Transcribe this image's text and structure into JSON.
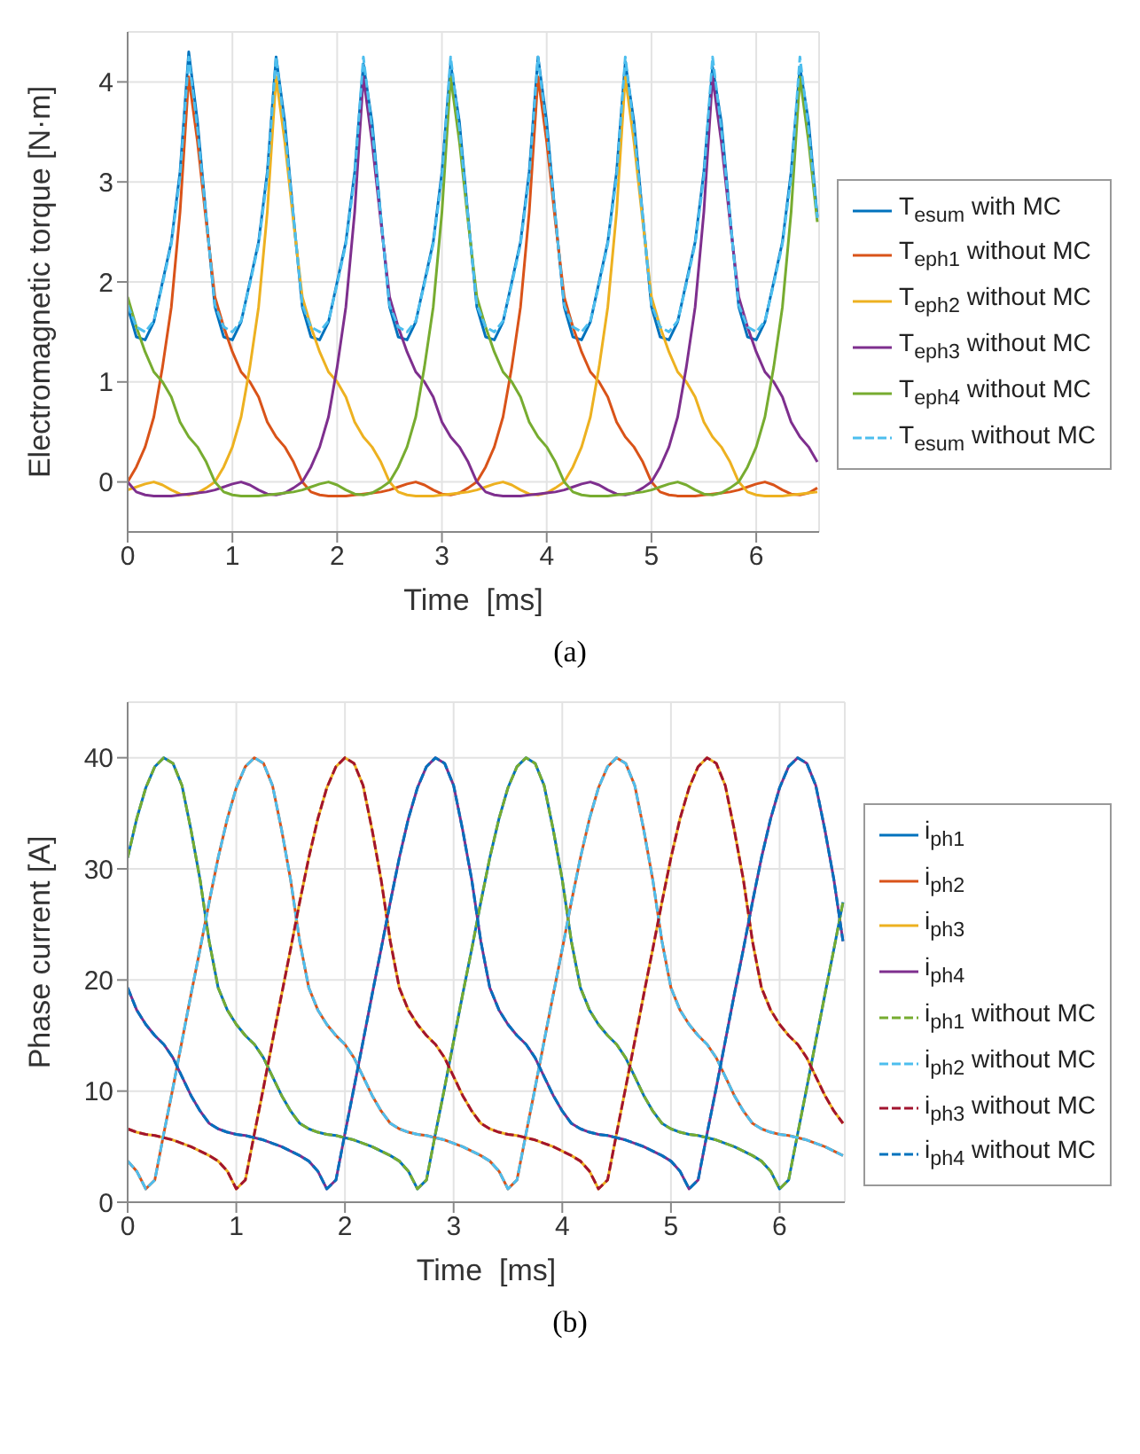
{
  "chart_data": [
    {
      "type": "line",
      "xlabel": "Time  [ms]",
      "ylabel": "Electromagnetic torque [N·m]",
      "annotations": [
        "(a)"
      ],
      "xlim": [
        0,
        6.6
      ],
      "xticks": [
        0,
        1,
        2,
        3,
        4,
        5,
        6
      ],
      "ylim": [
        -0.5,
        4.5
      ],
      "yticks": [
        0,
        1,
        2,
        3,
        4
      ],
      "grid": true,
      "legend": "right",
      "x": [
        0,
        0.083,
        0.167,
        0.25,
        0.333,
        0.417,
        0.5,
        0.583,
        0.667,
        0.75,
        0.833,
        0.917,
        1,
        1.083,
        1.167,
        1.25,
        1.333,
        1.417,
        1.5,
        1.583,
        1.667,
        1.75,
        1.833,
        1.917,
        2,
        2.083,
        2.167,
        2.25,
        2.333,
        2.417,
        2.5,
        2.583,
        2.667,
        2.75,
        2.833,
        2.917,
        3,
        3.083,
        3.167,
        3.25,
        3.333,
        3.417,
        3.5,
        3.583,
        3.667,
        3.75,
        3.833,
        3.917,
        4,
        4.083,
        4.167,
        4.25,
        4.333,
        4.417,
        4.5,
        4.583,
        4.667,
        4.75,
        4.833,
        4.917,
        5,
        5.083,
        5.167,
        5.25,
        5.333,
        5.417,
        5.5,
        5.583,
        5.667,
        5.75,
        5.833,
        5.917,
        6,
        6.083,
        6.167,
        6.25,
        6.333,
        6.417,
        6.5,
        6.583
      ],
      "series": [
        {
          "name": "T$_{esum}$ with MC",
          "color": "#0072bd",
          "line_style": "solid",
          "values": [
            1.75,
            1.45,
            1.42,
            1.6,
            2,
            2.4,
            3.1,
            4.3,
            3.6,
            2.65,
            1.75,
            1.45,
            1.42,
            1.6,
            2,
            2.4,
            3.1,
            4.25,
            3.6,
            2.65,
            1.75,
            1.45,
            1.42,
            1.6,
            2,
            2.4,
            3.1,
            4.18,
            3.6,
            2.65,
            1.75,
            1.45,
            1.42,
            1.6,
            2,
            2.4,
            3.1,
            4.18,
            3.6,
            2.65,
            1.75,
            1.45,
            1.42,
            1.6,
            2,
            2.4,
            3.1,
            4.25,
            3.6,
            2.65,
            1.75,
            1.45,
            1.42,
            1.6,
            2,
            2.4,
            3.1,
            4.2,
            3.6,
            2.65,
            1.75,
            1.45,
            1.42,
            1.6,
            2,
            2.4,
            3.1,
            4.15,
            3.6,
            2.65,
            1.75,
            1.45,
            1.42,
            1.6,
            2,
            2.4,
            3.1,
            4.15,
            3.6,
            2.65
          ]
        },
        {
          "name": "T$_{eph1}$ without MC",
          "color": "#d95319",
          "line_style": "solid",
          "values": [
            0,
            0.15,
            0.35,
            0.65,
            1.15,
            1.75,
            2.7,
            4.05,
            3.4,
            2.6,
            1.85,
            1.55,
            1.3,
            1.1,
            1,
            0.85,
            0.6,
            0.45,
            0.35,
            0.2,
            0,
            -0.1,
            -0.13,
            -0.14,
            -0.14,
            -0.14,
            -0.13,
            -0.12,
            -0.11,
            -0.1,
            -0.08,
            -0.05,
            -0.02,
            0,
            -0.03,
            -0.08,
            -0.12,
            -0.13,
            -0.11,
            -0.06,
            0,
            0.15,
            0.35,
            0.65,
            1.15,
            1.75,
            2.7,
            4.05,
            3.4,
            2.6,
            1.85,
            1.55,
            1.3,
            1.1,
            1,
            0.85,
            0.6,
            0.45,
            0.35,
            0.2,
            0,
            -0.1,
            -0.13,
            -0.14,
            -0.14,
            -0.14,
            -0.13,
            -0.12,
            -0.11,
            -0.1,
            -0.08,
            -0.05,
            -0.02,
            0,
            -0.03,
            -0.08,
            -0.12,
            -0.13,
            -0.11,
            -0.06
          ]
        },
        {
          "name": "T$_{eph2}$ without MC",
          "color": "#edb120",
          "line_style": "solid",
          "values": [
            -0.08,
            -0.05,
            -0.02,
            0,
            -0.03,
            -0.08,
            -0.12,
            -0.13,
            -0.11,
            -0.06,
            0,
            0.15,
            0.35,
            0.65,
            1.15,
            1.75,
            2.7,
            4.05,
            3.4,
            2.6,
            1.85,
            1.55,
            1.3,
            1.1,
            1,
            0.85,
            0.6,
            0.45,
            0.35,
            0.2,
            0,
            -0.1,
            -0.13,
            -0.14,
            -0.14,
            -0.14,
            -0.13,
            -0.12,
            -0.11,
            -0.1,
            -0.08,
            -0.05,
            -0.02,
            0,
            -0.03,
            -0.08,
            -0.12,
            -0.13,
            -0.11,
            -0.06,
            0,
            0.15,
            0.35,
            0.65,
            1.15,
            1.75,
            2.7,
            4.05,
            3.4,
            2.6,
            1.85,
            1.55,
            1.3,
            1.1,
            1,
            0.85,
            0.6,
            0.45,
            0.35,
            0.2,
            0,
            -0.1,
            -0.13,
            -0.14,
            -0.14,
            -0.14,
            -0.13,
            -0.12,
            -0.11,
            -0.1
          ]
        },
        {
          "name": "T$_{eph3}$ without MC",
          "color": "#7e2f8e",
          "line_style": "solid",
          "values": [
            0,
            -0.1,
            -0.13,
            -0.14,
            -0.14,
            -0.14,
            -0.13,
            -0.12,
            -0.11,
            -0.1,
            -0.08,
            -0.05,
            -0.02,
            0,
            -0.03,
            -0.08,
            -0.12,
            -0.13,
            -0.11,
            -0.06,
            0,
            0.15,
            0.35,
            0.65,
            1.15,
            1.75,
            2.7,
            4.05,
            3.4,
            2.6,
            1.85,
            1.55,
            1.3,
            1.1,
            1,
            0.85,
            0.6,
            0.45,
            0.35,
            0.2,
            0,
            -0.1,
            -0.13,
            -0.14,
            -0.14,
            -0.14,
            -0.13,
            -0.12,
            -0.11,
            -0.1,
            -0.08,
            -0.05,
            -0.02,
            0,
            -0.03,
            -0.08,
            -0.12,
            -0.13,
            -0.11,
            -0.06,
            0,
            0.15,
            0.35,
            0.65,
            1.15,
            1.75,
            2.7,
            4.05,
            3.4,
            2.6,
            1.85,
            1.55,
            1.3,
            1.1,
            1,
            0.85,
            0.6,
            0.45,
            0.35,
            0.2
          ]
        },
        {
          "name": "T$_{eph4}$ without MC",
          "color": "#77ac30",
          "line_style": "solid",
          "values": [
            1.85,
            1.55,
            1.3,
            1.1,
            1,
            0.85,
            0.6,
            0.45,
            0.35,
            0.2,
            0,
            -0.1,
            -0.13,
            -0.14,
            -0.14,
            -0.14,
            -0.13,
            -0.12,
            -0.11,
            -0.1,
            -0.08,
            -0.05,
            -0.02,
            0,
            -0.03,
            -0.08,
            -0.12,
            -0.13,
            -0.11,
            -0.06,
            0,
            0.15,
            0.35,
            0.65,
            1.15,
            1.75,
            2.7,
            4.05,
            3.4,
            2.6,
            1.85,
            1.55,
            1.3,
            1.1,
            1,
            0.85,
            0.6,
            0.45,
            0.35,
            0.2,
            0,
            -0.1,
            -0.13,
            -0.14,
            -0.14,
            -0.14,
            -0.13,
            -0.12,
            -0.11,
            -0.1,
            -0.08,
            -0.05,
            -0.02,
            0,
            -0.03,
            -0.08,
            -0.12,
            -0.13,
            -0.11,
            -0.06,
            0,
            0.15,
            0.35,
            0.65,
            1.15,
            1.75,
            2.7,
            4.05,
            3.4,
            2.6
          ]
        },
        {
          "name": "T$_{esum}$ without MC",
          "color": "#4dbeee",
          "line_style": "dashed",
          "values": [
            1.77,
            1.55,
            1.5,
            1.61,
            1.98,
            2.38,
            3.05,
            4.25,
            3.53,
            2.64,
            1.77,
            1.55,
            1.5,
            1.61,
            1.98,
            2.38,
            3.05,
            4.25,
            3.53,
            2.64,
            1.77,
            1.55,
            1.5,
            1.61,
            1.98,
            2.38,
            3.05,
            4.25,
            3.53,
            2.64,
            1.77,
            1.55,
            1.5,
            1.61,
            1.98,
            2.38,
            3.05,
            4.25,
            3.53,
            2.64,
            1.77,
            1.55,
            1.5,
            1.61,
            1.98,
            2.38,
            3.05,
            4.25,
            3.53,
            2.64,
            1.77,
            1.55,
            1.5,
            1.61,
            1.98,
            2.38,
            3.05,
            4.25,
            3.53,
            2.64,
            1.77,
            1.55,
            1.5,
            1.61,
            1.98,
            2.38,
            3.05,
            4.25,
            3.53,
            2.64,
            1.77,
            1.55,
            1.5,
            1.61,
            1.98,
            2.38,
            3.05,
            4.25,
            3.53,
            2.64
          ]
        }
      ]
    },
    {
      "type": "line",
      "xlabel": "Time  [ms]",
      "ylabel": "Phase current [A]",
      "annotations": [
        "(b)"
      ],
      "xlim": [
        0,
        6.6
      ],
      "xticks": [
        0,
        1,
        2,
        3,
        4,
        5,
        6
      ],
      "ylim": [
        0,
        45
      ],
      "yticks": [
        0,
        10,
        20,
        30,
        40
      ],
      "grid": true,
      "legend": "right",
      "x": [
        0,
        0.083,
        0.167,
        0.25,
        0.333,
        0.417,
        0.5,
        0.583,
        0.667,
        0.75,
        0.833,
        0.917,
        1,
        1.083,
        1.167,
        1.25,
        1.333,
        1.417,
        1.5,
        1.583,
        1.667,
        1.75,
        1.833,
        1.917,
        2,
        2.083,
        2.167,
        2.25,
        2.333,
        2.417,
        2.5,
        2.583,
        2.667,
        2.75,
        2.833,
        2.917,
        3,
        3.083,
        3.167,
        3.25,
        3.333,
        3.417,
        3.5,
        3.583,
        3.667,
        3.75,
        3.833,
        3.917,
        4,
        4.083,
        4.167,
        4.25,
        4.333,
        4.417,
        4.5,
        4.583,
        4.667,
        4.75,
        4.833,
        4.917,
        5,
        5.083,
        5.167,
        5.25,
        5.333,
        5.417,
        5.5,
        5.583,
        5.667,
        5.75,
        5.833,
        5.917,
        6,
        6.083,
        6.167,
        6.25,
        6.333,
        6.417,
        6.5,
        6.583
      ],
      "series": [
        {
          "name": "i$_{ph1}$",
          "color": "#0072bd",
          "line_style": "solid",
          "values": [
            31,
            34.5,
            37.3,
            39.2,
            40,
            39.5,
            37.5,
            33.5,
            29,
            23.5,
            19.3,
            17.3,
            16,
            15,
            14.2,
            13,
            11.3,
            9.6,
            8.2,
            7.1,
            6.6,
            6.3,
            6.1,
            6,
            5.8,
            5.6,
            5.3,
            5,
            4.6,
            4.2,
            3.7,
            2.8,
            1.2,
            2,
            6.2,
            10.3,
            14.5,
            18.7,
            22.8,
            27,
            31,
            34.5,
            37.3,
            39.2,
            40,
            39.5,
            37.5,
            33.5,
            29,
            23.5,
            19.3,
            17.3,
            16,
            15,
            14.2,
            13,
            11.3,
            9.6,
            8.2,
            7.1,
            6.6,
            6.3,
            6.1,
            6,
            5.8,
            5.6,
            5.3,
            5,
            4.6,
            4.2,
            3.7,
            2.8,
            1.2,
            2,
            6.2,
            10.3,
            14.5,
            18.7,
            22.8,
            27
          ]
        },
        {
          "name": "i$_{ph2}$",
          "color": "#d95319",
          "line_style": "solid",
          "values": [
            3.7,
            2.8,
            1.2,
            2,
            6.2,
            10.3,
            14.5,
            18.7,
            22.8,
            27,
            31,
            34.5,
            37.3,
            39.2,
            40,
            39.5,
            37.5,
            33.5,
            29,
            23.5,
            19.3,
            17.3,
            16,
            15,
            14.2,
            13,
            11.3,
            9.6,
            8.2,
            7.1,
            6.6,
            6.3,
            6.1,
            6,
            5.8,
            5.6,
            5.3,
            5,
            4.6,
            4.2,
            3.7,
            2.8,
            1.2,
            2,
            6.2,
            10.3,
            14.5,
            18.7,
            22.8,
            27,
            31,
            34.5,
            37.3,
            39.2,
            40,
            39.5,
            37.5,
            33.5,
            29,
            23.5,
            19.3,
            17.3,
            16,
            15,
            14.2,
            13,
            11.3,
            9.6,
            8.2,
            7.1,
            6.6,
            6.3,
            6.1,
            6,
            5.8,
            5.6,
            5.3,
            5,
            4.6,
            4.2
          ]
        },
        {
          "name": "i$_{ph3}$",
          "color": "#edb120",
          "line_style": "solid",
          "values": [
            6.6,
            6.3,
            6.1,
            6,
            5.8,
            5.6,
            5.3,
            5,
            4.6,
            4.2,
            3.7,
            2.8,
            1.2,
            2,
            6.2,
            10.3,
            14.5,
            18.7,
            22.8,
            27,
            31,
            34.5,
            37.3,
            39.2,
            40,
            39.5,
            37.5,
            33.5,
            29,
            23.5,
            19.3,
            17.3,
            16,
            15,
            14.2,
            13,
            11.3,
            9.6,
            8.2,
            7.1,
            6.6,
            6.3,
            6.1,
            6,
            5.8,
            5.6,
            5.3,
            5,
            4.6,
            4.2,
            3.7,
            2.8,
            1.2,
            2,
            6.2,
            10.3,
            14.5,
            18.7,
            22.8,
            27,
            31,
            34.5,
            37.3,
            39.2,
            40,
            39.5,
            37.5,
            33.5,
            29,
            23.5,
            19.3,
            17.3,
            16,
            15,
            14.2,
            13,
            11.3,
            9.6,
            8.2,
            7.1
          ]
        },
        {
          "name": "i$_{ph4}$",
          "color": "#7e2f8e",
          "line_style": "solid",
          "values": [
            19.3,
            17.3,
            16,
            15,
            14.2,
            13,
            11.3,
            9.6,
            8.2,
            7.1,
            6.6,
            6.3,
            6.1,
            6,
            5.8,
            5.6,
            5.3,
            5,
            4.6,
            4.2,
            3.7,
            2.8,
            1.2,
            2,
            6.2,
            10.3,
            14.5,
            18.7,
            22.8,
            27,
            31,
            34.5,
            37.3,
            39.2,
            40,
            39.5,
            37.5,
            33.5,
            29,
            23.5,
            19.3,
            17.3,
            16,
            15,
            14.2,
            13,
            11.3,
            9.6,
            8.2,
            7.1,
            6.6,
            6.3,
            6.1,
            6,
            5.8,
            5.6,
            5.3,
            5,
            4.6,
            4.2,
            3.7,
            2.8,
            1.2,
            2,
            6.2,
            10.3,
            14.5,
            18.7,
            22.8,
            27,
            31,
            34.5,
            37.3,
            39.2,
            40,
            39.5,
            37.5,
            33.5,
            29,
            23.5
          ]
        },
        {
          "name": "i$_{ph1}$ without MC",
          "color": "#77ac30",
          "line_style": "dashed",
          "values": [
            31,
            34.5,
            37.3,
            39.2,
            40,
            39.5,
            37.5,
            33.5,
            29,
            23.5,
            19.3,
            17.3,
            16,
            15,
            14.2,
            13,
            11.3,
            9.6,
            8.2,
            7.1,
            6.6,
            6.3,
            6.1,
            6,
            5.8,
            5.6,
            5.3,
            5,
            4.6,
            4.2,
            3.7,
            2.8,
            1.2,
            2,
            6.2,
            10.3,
            14.5,
            18.7,
            22.8,
            27,
            31,
            34.5,
            37.3,
            39.2,
            40,
            39.5,
            37.5,
            33.5,
            29,
            23.5,
            19.3,
            17.3,
            16,
            15,
            14.2,
            13,
            11.3,
            9.6,
            8.2,
            7.1,
            6.6,
            6.3,
            6.1,
            6,
            5.8,
            5.6,
            5.3,
            5,
            4.6,
            4.2,
            3.7,
            2.8,
            1.2,
            2,
            6.2,
            10.3,
            14.5,
            18.7,
            22.8,
            27
          ]
        },
        {
          "name": "i$_{ph2}$ without MC",
          "color": "#4dbeee",
          "line_style": "dashed",
          "values": [
            3.7,
            2.8,
            1.2,
            2,
            6.2,
            10.3,
            14.5,
            18.7,
            22.8,
            27,
            31,
            34.5,
            37.3,
            39.2,
            40,
            39.5,
            37.5,
            33.5,
            29,
            23.5,
            19.3,
            17.3,
            16,
            15,
            14.2,
            13,
            11.3,
            9.6,
            8.2,
            7.1,
            6.6,
            6.3,
            6.1,
            6,
            5.8,
            5.6,
            5.3,
            5,
            4.6,
            4.2,
            3.7,
            2.8,
            1.2,
            2,
            6.2,
            10.3,
            14.5,
            18.7,
            22.8,
            27,
            31,
            34.5,
            37.3,
            39.2,
            40,
            39.5,
            37.5,
            33.5,
            29,
            23.5,
            19.3,
            17.3,
            16,
            15,
            14.2,
            13,
            11.3,
            9.6,
            8.2,
            7.1,
            6.6,
            6.3,
            6.1,
            6,
            5.8,
            5.6,
            5.3,
            5,
            4.6,
            4.2
          ]
        },
        {
          "name": "i$_{ph3}$ without MC",
          "color": "#a2142f",
          "line_style": "dashed",
          "values": [
            6.6,
            6.3,
            6.1,
            6,
            5.8,
            5.6,
            5.3,
            5,
            4.6,
            4.2,
            3.7,
            2.8,
            1.2,
            2,
            6.2,
            10.3,
            14.5,
            18.7,
            22.8,
            27,
            31,
            34.5,
            37.3,
            39.2,
            40,
            39.5,
            37.5,
            33.5,
            29,
            23.5,
            19.3,
            17.3,
            16,
            15,
            14.2,
            13,
            11.3,
            9.6,
            8.2,
            7.1,
            6.6,
            6.3,
            6.1,
            6,
            5.8,
            5.6,
            5.3,
            5,
            4.6,
            4.2,
            3.7,
            2.8,
            1.2,
            2,
            6.2,
            10.3,
            14.5,
            18.7,
            22.8,
            27,
            31,
            34.5,
            37.3,
            39.2,
            40,
            39.5,
            37.5,
            33.5,
            29,
            23.5,
            19.3,
            17.3,
            16,
            15,
            14.2,
            13,
            11.3,
            9.6,
            8.2,
            7.1
          ]
        },
        {
          "name": "i$_{ph4}$ without MC",
          "color": "#0072bd",
          "line_style": "dashed",
          "values": [
            19.3,
            17.3,
            16,
            15,
            14.2,
            13,
            11.3,
            9.6,
            8.2,
            7.1,
            6.6,
            6.3,
            6.1,
            6,
            5.8,
            5.6,
            5.3,
            5,
            4.6,
            4.2,
            3.7,
            2.8,
            1.2,
            2,
            6.2,
            10.3,
            14.5,
            18.7,
            22.8,
            27,
            31,
            34.5,
            37.3,
            39.2,
            40,
            39.5,
            37.5,
            33.5,
            29,
            23.5,
            19.3,
            17.3,
            16,
            15,
            14.2,
            13,
            11.3,
            9.6,
            8.2,
            7.1,
            6.6,
            6.3,
            6.1,
            6,
            5.8,
            5.6,
            5.3,
            5,
            4.6,
            4.2,
            3.7,
            2.8,
            1.2,
            2,
            6.2,
            10.3,
            14.5,
            18.7,
            22.8,
            27,
            31,
            34.5,
            37.3,
            39.2,
            40,
            39.5,
            37.5,
            33.5,
            29,
            23.5
          ]
        }
      ]
    }
  ]
}
